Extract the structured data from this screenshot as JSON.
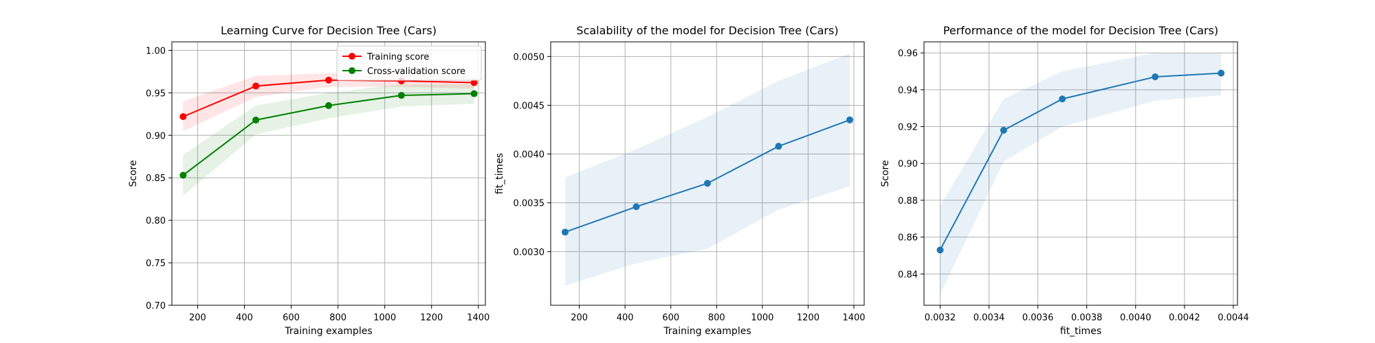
{
  "chart_data": [
    {
      "type": "line",
      "title": "Learning Curve for Decision Tree (Cars)",
      "xlabel": "Training examples",
      "ylabel": "Score",
      "xlim": [
        90,
        1430
      ],
      "ylim": [
        0.7,
        1.01
      ],
      "xticks": [
        200,
        400,
        600,
        800,
        1000,
        1200,
        1400
      ],
      "yticks": [
        0.7,
        0.75,
        0.8,
        0.85,
        0.9,
        0.95,
        1.0
      ],
      "ytick_decimals": 2,
      "grid": true,
      "legend": "top-right",
      "x": [
        138,
        449,
        760,
        1071,
        1382
      ],
      "series": [
        {
          "name": "Training score",
          "color": "#ff0000",
          "values": [
            0.922,
            0.958,
            0.965,
            0.964,
            0.962
          ],
          "lower": [
            0.905,
            0.945,
            0.957,
            0.957,
            0.955
          ],
          "upper": [
            0.94,
            0.97,
            0.973,
            0.972,
            0.969
          ]
        },
        {
          "name": "Cross-validation score",
          "color": "#008000",
          "values": [
            0.853,
            0.918,
            0.935,
            0.947,
            0.949
          ],
          "lower": [
            0.829,
            0.901,
            0.92,
            0.934,
            0.937
          ],
          "upper": [
            0.877,
            0.935,
            0.95,
            0.96,
            0.96
          ]
        }
      ]
    },
    {
      "type": "line",
      "title": "Scalability of the model for Decision Tree (Cars)",
      "xlabel": "Training examples",
      "ylabel": "fit_times",
      "xlim": [
        75,
        1445
      ],
      "ylim": [
        0.00245,
        0.00515
      ],
      "xticks": [
        200,
        400,
        600,
        800,
        1000,
        1200,
        1400
      ],
      "yticks": [
        0.003,
        0.0035,
        0.004,
        0.0045,
        0.005
      ],
      "ytick_decimals": 4,
      "grid": true,
      "x": [
        138,
        449,
        760,
        1071,
        1382
      ],
      "series": [
        {
          "name": "fit_times",
          "color": "#1f77b4",
          "values": [
            0.0032,
            0.00346,
            0.0037,
            0.00408,
            0.00435
          ],
          "lower": [
            0.00265,
            0.00288,
            0.00303,
            0.00343,
            0.00367
          ],
          "upper": [
            0.00376,
            0.00405,
            0.00438,
            0.00475,
            0.00503
          ]
        }
      ]
    },
    {
      "type": "line",
      "title": "Performance of the model for Decision Tree (Cars)",
      "xlabel": "fit_times",
      "ylabel": "Score",
      "xlim": [
        0.003134,
        0.004417
      ],
      "ylim": [
        0.823,
        0.966
      ],
      "xticks": [
        0.0032,
        0.0034,
        0.0036,
        0.0038,
        0.004,
        0.0042,
        0.0044
      ],
      "yticks": [
        0.84,
        0.86,
        0.88,
        0.9,
        0.92,
        0.94,
        0.96
      ],
      "xtick_decimals": 4,
      "ytick_decimals": 2,
      "grid": true,
      "x": [
        0.0032,
        0.00346,
        0.0037,
        0.00408,
        0.00435
      ],
      "series": [
        {
          "name": "Score",
          "color": "#1f77b4",
          "values": [
            0.853,
            0.918,
            0.935,
            0.947,
            0.949
          ],
          "lower": [
            0.829,
            0.901,
            0.92,
            0.934,
            0.937
          ],
          "upper": [
            0.877,
            0.935,
            0.95,
            0.96,
            0.96
          ]
        }
      ]
    }
  ]
}
